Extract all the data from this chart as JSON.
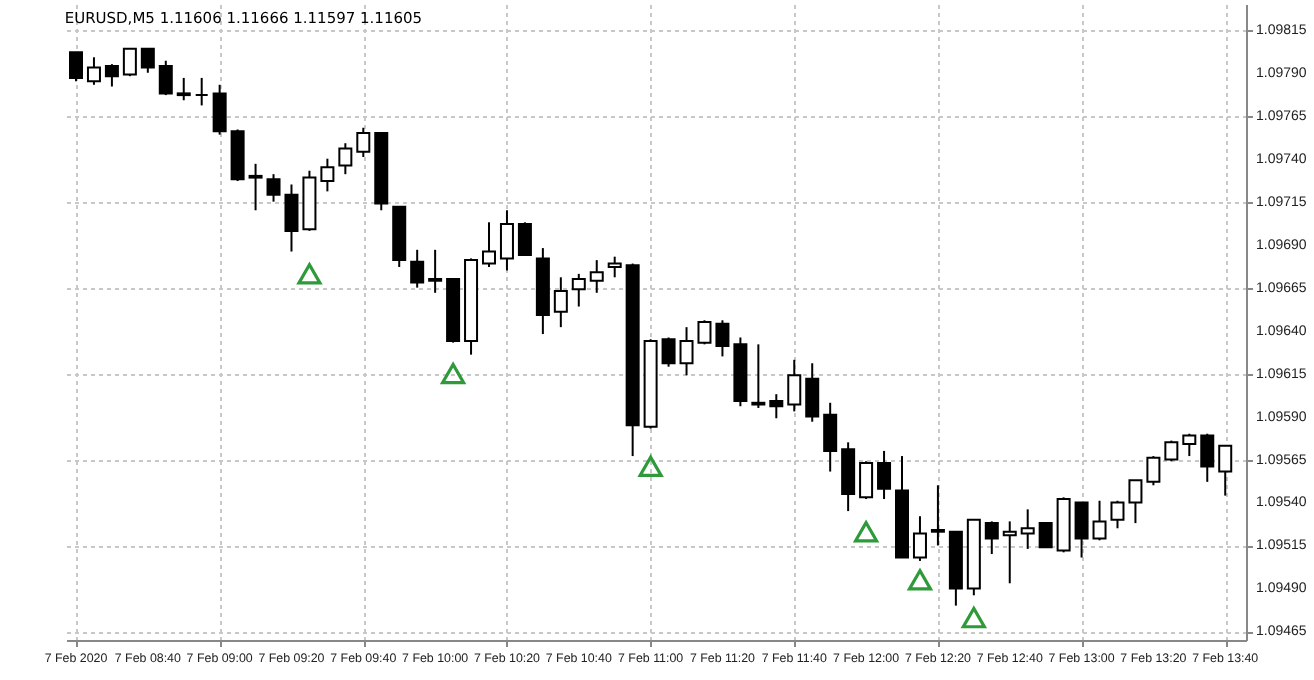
{
  "chart_data": {
    "type": "candlestick",
    "title": "EURUSD,M5 1.11606 1.11666 1.11597 1.11605",
    "x": [
      "2020-02-07T08:20",
      "2020-02-07T08:25",
      "2020-02-07T08:30",
      "2020-02-07T08:35",
      "2020-02-07T08:40",
      "2020-02-07T08:45",
      "2020-02-07T08:50",
      "2020-02-07T08:55",
      "2020-02-07T09:00",
      "2020-02-07T09:05",
      "2020-02-07T09:10",
      "2020-02-07T09:15",
      "2020-02-07T09:20",
      "2020-02-07T09:25",
      "2020-02-07T09:30",
      "2020-02-07T09:35",
      "2020-02-07T09:40",
      "2020-02-07T09:45",
      "2020-02-07T09:50",
      "2020-02-07T09:55",
      "2020-02-07T10:00",
      "2020-02-07T10:05",
      "2020-02-07T10:10",
      "2020-02-07T10:15",
      "2020-02-07T10:20",
      "2020-02-07T10:25",
      "2020-02-07T10:30",
      "2020-02-07T10:35",
      "2020-02-07T10:40",
      "2020-02-07T10:45",
      "2020-02-07T10:50",
      "2020-02-07T10:55",
      "2020-02-07T11:00",
      "2020-02-07T11:05",
      "2020-02-07T11:10",
      "2020-02-07T11:15",
      "2020-02-07T11:20",
      "2020-02-07T11:25",
      "2020-02-07T11:30",
      "2020-02-07T11:35",
      "2020-02-07T11:40",
      "2020-02-07T11:45",
      "2020-02-07T11:50",
      "2020-02-07T11:55",
      "2020-02-07T12:00",
      "2020-02-07T12:05",
      "2020-02-07T12:10",
      "2020-02-07T12:15",
      "2020-02-07T12:20",
      "2020-02-07T12:25",
      "2020-02-07T12:30",
      "2020-02-07T12:35",
      "2020-02-07T12:40",
      "2020-02-07T12:45",
      "2020-02-07T12:50",
      "2020-02-07T12:55",
      "2020-02-07T13:00",
      "2020-02-07T13:05",
      "2020-02-07T13:10",
      "2020-02-07T13:15",
      "2020-02-07T13:20",
      "2020-02-07T13:25",
      "2020-02-07T13:30",
      "2020-02-07T13:35",
      "2020-02-07T13:40"
    ],
    "ohlc": [
      [
        1.09802,
        1.09802,
        1.09785,
        1.09787
      ],
      [
        1.09785,
        1.09799,
        1.09783,
        1.09793
      ],
      [
        1.09794,
        1.09795,
        1.09782,
        1.09788
      ],
      [
        1.09789,
        1.09804,
        1.09788,
        1.09804
      ],
      [
        1.09804,
        1.09804,
        1.0979,
        1.09793
      ],
      [
        1.09794,
        1.09797,
        1.09777,
        1.09778
      ],
      [
        1.09778,
        1.09787,
        1.09774,
        1.09777
      ],
      [
        1.09777,
        1.09787,
        1.09771,
        1.09777
      ],
      [
        1.09778,
        1.09783,
        1.09754,
        1.09756
      ],
      [
        1.09756,
        1.09757,
        1.09727,
        1.09728
      ],
      [
        1.0973,
        1.09737,
        1.0971,
        1.09729
      ],
      [
        1.09728,
        1.09731,
        1.09715,
        1.09719
      ],
      [
        1.09719,
        1.09725,
        1.09686,
        1.09698
      ],
      [
        1.09699,
        1.09733,
        1.09698,
        1.09729
      ],
      [
        1.09727,
        1.0974,
        1.09721,
        1.09735
      ],
      [
        1.09736,
        1.09749,
        1.09731,
        1.09746
      ],
      [
        1.09744,
        1.09758,
        1.09741,
        1.09755
      ],
      [
        1.09755,
        1.09755,
        1.0971,
        1.09714
      ],
      [
        1.09712,
        1.09712,
        1.09677,
        1.09681
      ],
      [
        1.0968,
        1.09687,
        1.09665,
        1.09668
      ],
      [
        1.0967,
        1.09687,
        1.09662,
        1.09669
      ],
      [
        1.0967,
        1.0967,
        1.09633,
        1.09634
      ],
      [
        1.09634,
        1.09682,
        1.09626,
        1.09681
      ],
      [
        1.09679,
        1.09703,
        1.09677,
        1.09686
      ],
      [
        1.09682,
        1.0971,
        1.09675,
        1.09702
      ],
      [
        1.09702,
        1.09703,
        1.09684,
        1.09684
      ],
      [
        1.09682,
        1.09688,
        1.09638,
        1.09649
      ],
      [
        1.09651,
        1.09671,
        1.09642,
        1.09663
      ],
      [
        1.09664,
        1.09673,
        1.09654,
        1.0967
      ],
      [
        1.09669,
        1.09681,
        1.09662,
        1.09674
      ],
      [
        1.09677,
        1.09683,
        1.09671,
        1.09679
      ],
      [
        1.09678,
        1.09679,
        1.09567,
        1.09585
      ],
      [
        1.09584,
        1.09635,
        1.09583,
        1.09634
      ],
      [
        1.09635,
        1.09636,
        1.09619,
        1.09621
      ],
      [
        1.09621,
        1.09642,
        1.09614,
        1.09634
      ],
      [
        1.09633,
        1.09646,
        1.09632,
        1.09645
      ],
      [
        1.09644,
        1.09646,
        1.09625,
        1.09631
      ],
      [
        1.09632,
        1.09636,
        1.09596,
        1.09599
      ],
      [
        1.09598,
        1.09632,
        1.09595,
        1.09597
      ],
      [
        1.09599,
        1.09603,
        1.09589,
        1.09596
      ],
      [
        1.09597,
        1.09623,
        1.09593,
        1.09614
      ],
      [
        1.09612,
        1.09621,
        1.09587,
        1.0959
      ],
      [
        1.09591,
        1.09598,
        1.09558,
        1.0957
      ],
      [
        1.09571,
        1.09575,
        1.09535,
        1.09545
      ],
      [
        1.09543,
        1.09564,
        1.09542,
        1.09563
      ],
      [
        1.09563,
        1.0957,
        1.09542,
        1.09548
      ],
      [
        1.09547,
        1.09567,
        1.09508,
        1.09508
      ],
      [
        1.09508,
        1.09532,
        1.09506,
        1.09522
      ],
      [
        1.09524,
        1.0955,
        1.09515,
        1.09523
      ],
      [
        1.09523,
        1.09523,
        1.0948,
        1.0949
      ],
      [
        1.0949,
        1.0953,
        1.09486,
        1.0953
      ],
      [
        1.09528,
        1.09529,
        1.0951,
        1.09519
      ],
      [
        1.09521,
        1.09529,
        1.09493,
        1.09523
      ],
      [
        1.09522,
        1.09536,
        1.09513,
        1.09525
      ],
      [
        1.09528,
        1.09528,
        1.09514,
        1.09514
      ],
      [
        1.09512,
        1.09543,
        1.09511,
        1.09542
      ],
      [
        1.0954,
        1.0954,
        1.09508,
        1.09519
      ],
      [
        1.09519,
        1.09541,
        1.09518,
        1.09529
      ],
      [
        1.0953,
        1.09541,
        1.09525,
        1.0954
      ],
      [
        1.0954,
        1.09553,
        1.09528,
        1.09553
      ],
      [
        1.09552,
        1.09567,
        1.0955,
        1.09566
      ],
      [
        1.09565,
        1.09576,
        1.09564,
        1.09575
      ],
      [
        1.09574,
        1.0958,
        1.09567,
        1.09579
      ],
      [
        1.09579,
        1.0958,
        1.09552,
        1.09561
      ],
      [
        1.09558,
        1.09573,
        1.09544,
        1.09573
      ]
    ],
    "series": [
      {
        "type": "scatter",
        "color": "#2e9a3a",
        "x": [
          "2020-02-07T09:25",
          "2020-02-07T10:05",
          "2020-02-07T11:00",
          "2020-02-07T12:00",
          "2020-02-07T12:15",
          "2020-02-07T12:30"
        ],
        "values": [
          1.09673,
          1.09615,
          1.09561,
          1.09523,
          1.09495,
          1.09473
        ]
      }
    ],
    "marker": "triangle",
    "xlim": [
      "2020-02-07T08:20",
      "2020-02-07T13:43"
    ],
    "xticks": [
      {
        "value": "2020-02-07T08:20",
        "label": "7 Feb 2020"
      },
      {
        "value": "2020-02-07T08:40",
        "label": "7 Feb 08:40"
      },
      {
        "value": "2020-02-07T09:00",
        "label": "7 Feb 09:00"
      },
      {
        "value": "2020-02-07T09:20",
        "label": "7 Feb 09:20"
      },
      {
        "value": "2020-02-07T09:40",
        "label": "7 Feb 09:40"
      },
      {
        "value": "2020-02-07T10:00",
        "label": "7 Feb 10:00"
      },
      {
        "value": "2020-02-07T10:20",
        "label": "7 Feb 10:20"
      },
      {
        "value": "2020-02-07T10:40",
        "label": "7 Feb 10:40"
      },
      {
        "value": "2020-02-07T11:00",
        "label": "7 Feb 11:00"
      },
      {
        "value": "2020-02-07T11:20",
        "label": "7 Feb 11:20"
      },
      {
        "value": "2020-02-07T11:40",
        "label": "7 Feb 11:40"
      },
      {
        "value": "2020-02-07T12:00",
        "label": "7 Feb 12:00"
      },
      {
        "value": "2020-02-07T12:20",
        "label": "7 Feb 12:20"
      },
      {
        "value": "2020-02-07T12:40",
        "label": "7 Feb 12:40"
      },
      {
        "value": "2020-02-07T13:00",
        "label": "7 Feb 13:00"
      },
      {
        "value": "2020-02-07T13:20",
        "label": "7 Feb 13:20"
      },
      {
        "value": "2020-02-07T13:40",
        "label": "7 Feb 13:40"
      }
    ],
    "ylim": [
      1.0946,
      1.0983
    ],
    "yticks": [
      1.09465,
      {
        "value": 1.0949,
        "label": "1.09490"
      },
      1.09515,
      {
        "value": 1.0954,
        "label": "1.09540"
      },
      1.09565,
      {
        "value": 1.0959,
        "label": "1.09590"
      },
      1.09615,
      {
        "value": 1.0964,
        "label": "1.09640"
      },
      1.09665,
      {
        "value": 1.0969,
        "label": "1.09690"
      },
      1.09715,
      {
        "value": 1.0974,
        "label": "1.09740"
      },
      1.09765,
      {
        "value": 1.0979,
        "label": "1.09790"
      },
      1.09815
    ],
    "grid": true
  }
}
